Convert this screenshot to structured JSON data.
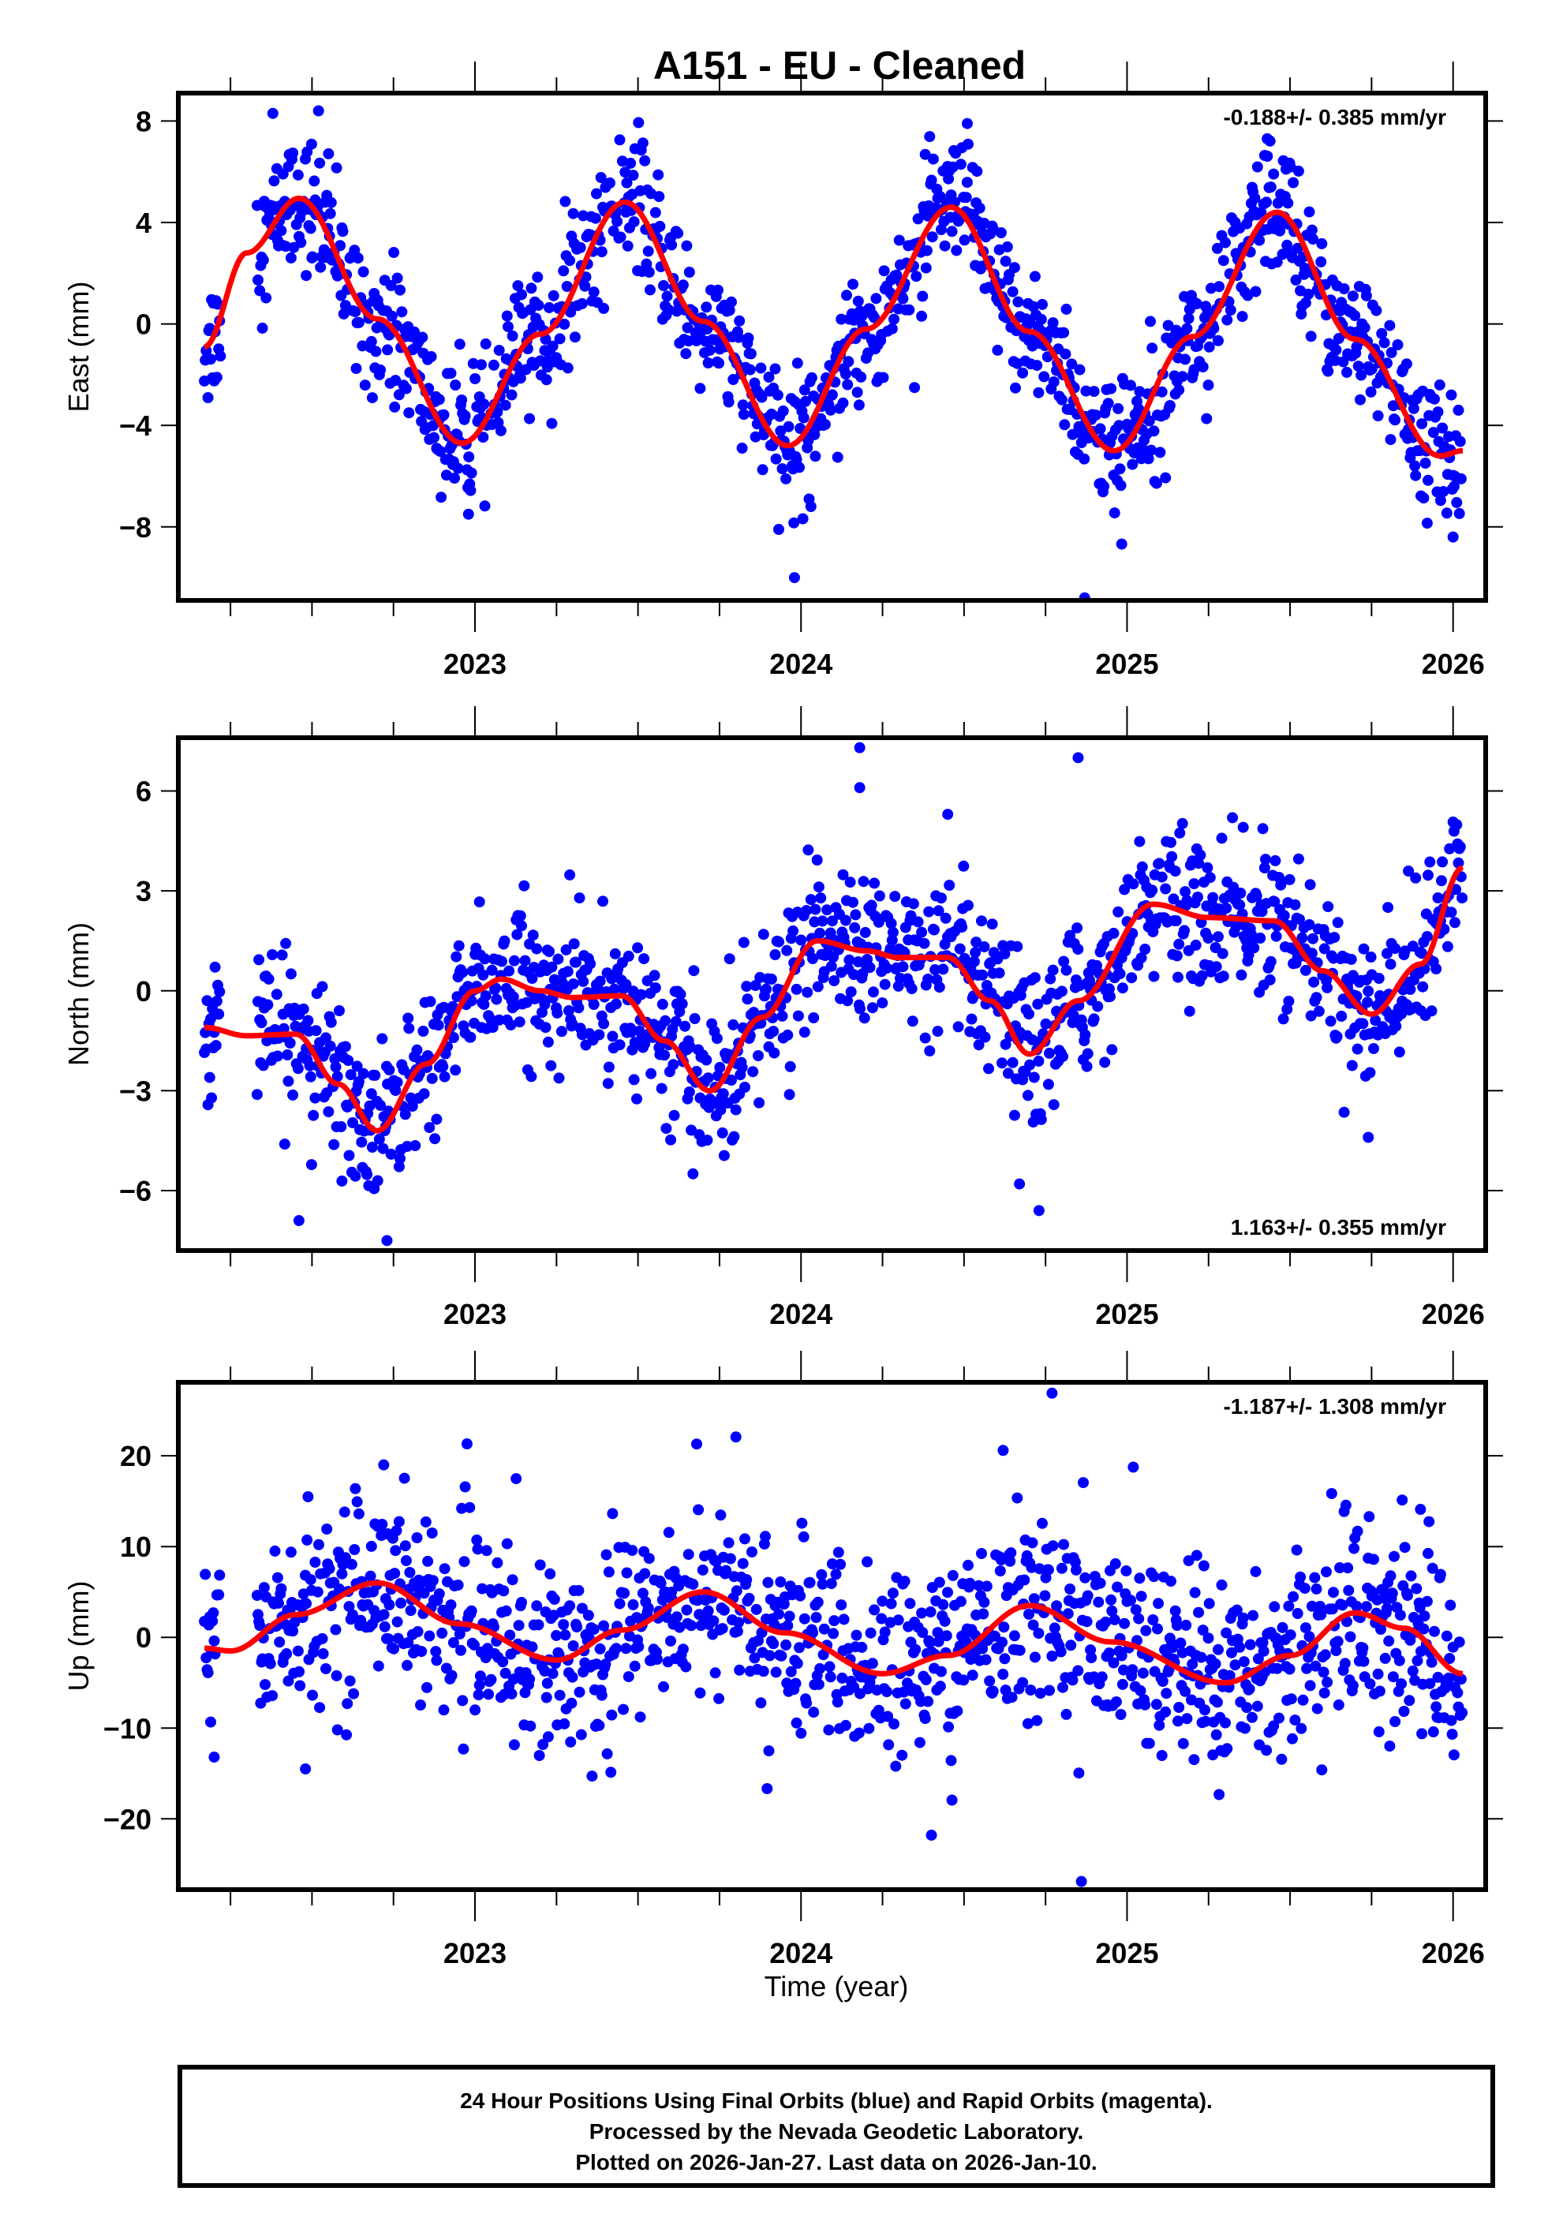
{
  "chart_data": {
    "type": "scatter",
    "title": "A151  - EU - Cleaned",
    "xlabel": "Time (year)",
    "xlim": [
      2022.09,
      2026.1
    ],
    "x_ticks": [
      2023,
      2024,
      2025,
      2026
    ],
    "x_minor_step": 0.25,
    "colors": {
      "observations": "#0000ff",
      "model": "#ff0000",
      "frame": "#000000"
    },
    "panels": [
      {
        "name": "east",
        "ylabel": "East (mm)",
        "ylim": [
          -10.9,
          9.1
        ],
        "y_ticks": [
          8,
          4,
          0,
          -4,
          -8
        ],
        "y_tick_labels": [
          "8",
          "4",
          "0",
          "−4",
          "−8"
        ],
        "rate_text": "-0.188+/- 0.385 mm/yr",
        "rate_position": "top-right",
        "model_curve": {
          "x": [
            2022.17,
            2022.3,
            2022.46,
            2022.7,
            2022.96,
            2023.2,
            2023.46,
            2023.7,
            2023.96,
            2024.2,
            2024.46,
            2024.7,
            2024.96,
            2025.2,
            2025.46,
            2025.7,
            2025.96,
            2026.03
          ],
          "y": [
            -0.9,
            2.8,
            4.95,
            0.2,
            -4.7,
            -0.4,
            4.8,
            0.1,
            -4.8,
            -0.2,
            4.6,
            -0.3,
            -5.0,
            -0.5,
            4.4,
            -0.6,
            -5.2,
            -5.0
          ]
        },
        "observations": {
          "noise_sd": 1.3,
          "outliers": [
            {
              "x": 2022.38,
              "y": 8.3
            },
            {
              "x": 2022.52,
              "y": 8.4
            },
            {
              "x": 2022.98,
              "y": -7.5
            },
            {
              "x": 2023.98,
              "y": -10.0
            },
            {
              "x": 2024.51,
              "y": 7.9
            },
            {
              "x": 2024.87,
              "y": -10.8
            },
            {
              "x": 2025.43,
              "y": 7.3
            },
            {
              "x": 2026.0,
              "y": -8.4
            },
            {
              "x": 2022.5,
              "y": 2.6
            }
          ]
        }
      },
      {
        "name": "north",
        "ylabel": "North (mm)",
        "ylim": [
          -7.8,
          7.6
        ],
        "y_ticks": [
          6,
          3,
          0,
          -3,
          -6
        ],
        "y_tick_labels": [
          "6",
          "3",
          "0",
          "−3",
          "−6"
        ],
        "rate_text": "1.163+/- 0.355 mm/yr",
        "rate_position": "bottom-right",
        "model_curve": {
          "x": [
            2022.17,
            2022.3,
            2022.45,
            2022.58,
            2022.7,
            2022.85,
            2023.0,
            2023.08,
            2023.2,
            2023.3,
            2023.45,
            2023.58,
            2023.72,
            2023.88,
            2024.05,
            2024.2,
            2024.3,
            2024.45,
            2024.58,
            2024.7,
            2024.85,
            2025.08,
            2025.25,
            2025.45,
            2025.6,
            2025.75,
            2025.9,
            2026.03
          ],
          "y": [
            -1.1,
            -1.35,
            -1.3,
            -2.8,
            -4.2,
            -2.2,
            0.0,
            0.35,
            0.0,
            -0.2,
            -0.15,
            -1.5,
            -3.0,
            -0.8,
            1.5,
            1.2,
            1.0,
            1.0,
            -0.3,
            -1.9,
            -0.3,
            2.6,
            2.2,
            2.1,
            0.6,
            -0.7,
            0.8,
            3.7
          ]
        },
        "observations": {
          "noise_sd": 1.1,
          "outliers": [
            {
              "x": 2022.46,
              "y": -6.9
            },
            {
              "x": 2022.73,
              "y": -7.5
            },
            {
              "x": 2024.18,
              "y": 7.3
            },
            {
              "x": 2024.18,
              "y": 6.1
            },
            {
              "x": 2024.85,
              "y": 7.0
            },
            {
              "x": 2024.67,
              "y": -5.8
            },
            {
              "x": 2024.73,
              "y": -6.6
            },
            {
              "x": 2025.74,
              "y": -4.4
            },
            {
              "x": 2024.45,
              "y": 5.3
            }
          ]
        }
      },
      {
        "name": "up",
        "ylabel": "Up (mm)",
        "ylim": [
          -27.8,
          28.1
        ],
        "y_ticks": [
          20,
          10,
          0,
          -10,
          -20
        ],
        "y_tick_labels": [
          "20",
          "10",
          "0",
          "−10",
          "−20"
        ],
        "rate_text": "-1.187+/- 1.308 mm/yr",
        "rate_position": "top-right",
        "model_curve": {
          "x": [
            2022.17,
            2022.25,
            2022.45,
            2022.7,
            2022.95,
            2023.25,
            2023.45,
            2023.7,
            2023.95,
            2024.25,
            2024.45,
            2024.7,
            2024.95,
            2025.3,
            2025.5,
            2025.7,
            2025.85,
            2026.03
          ],
          "y": [
            -1.2,
            -1.5,
            2.5,
            6.0,
            1.5,
            -2.5,
            0.8,
            5.0,
            0.5,
            -4.0,
            -2.0,
            3.5,
            -0.5,
            -5.0,
            -2.0,
            2.7,
            1.0,
            -4.0
          ]
        },
        "observations": {
          "noise_sd": 5.2,
          "outliers": [
            {
              "x": 2022.2,
              "y": -13.2
            },
            {
              "x": 2022.48,
              "y": -14.5
            },
            {
              "x": 2022.72,
              "y": 19.0
            },
            {
              "x": 2023.68,
              "y": 21.3
            },
            {
              "x": 2024.4,
              "y": -21.8
            },
            {
              "x": 2024.77,
              "y": 26.9
            },
            {
              "x": 2024.86,
              "y": -26.9
            },
            {
              "x": 2024.62,
              "y": 20.6
            },
            {
              "x": 2025.9,
              "y": 14.1
            }
          ]
        }
      }
    ]
  },
  "footer": {
    "lines": [
      "24 Hour Positions Using Final Orbits (blue) and Rapid Orbits (magenta).",
      "Processed by the Nevada Geodetic Laboratory.",
      "Plotted on 2026-Jan-27. Last data on 2026-Jan-10."
    ]
  }
}
